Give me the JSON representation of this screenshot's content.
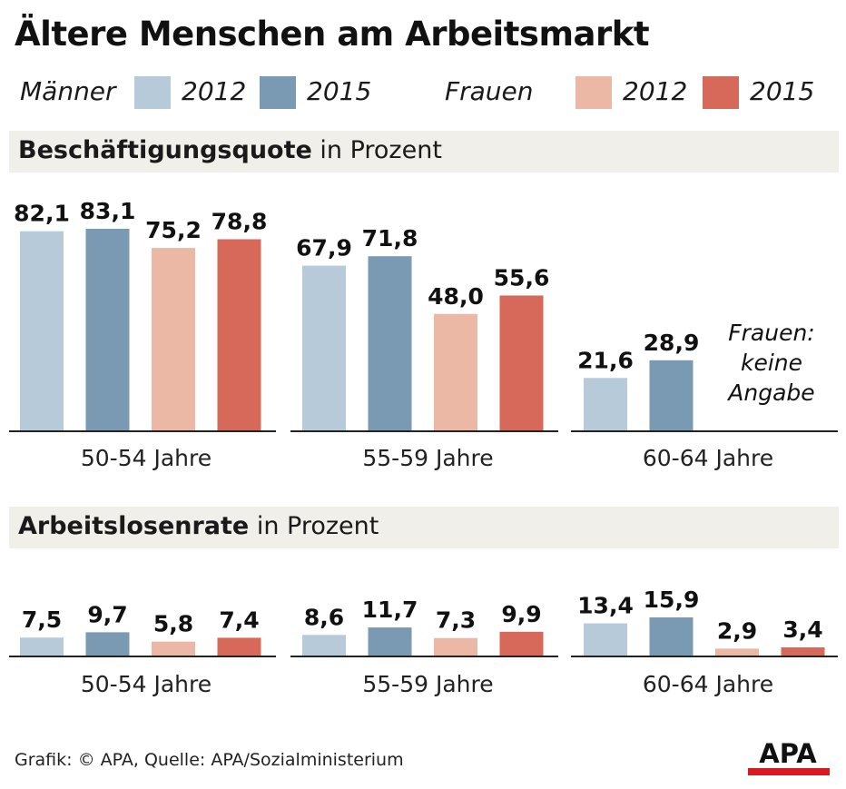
{
  "title": "Ältere Menschen am Arbeitsmarkt",
  "legend": {
    "men_label": "Männer",
    "women_label": "Frauen",
    "items": [
      {
        "year": "2012",
        "color": "#b7cad9"
      },
      {
        "year": "2015",
        "color": "#7a9ab3"
      },
      {
        "year": "2012",
        "color": "#ebb8a6"
      },
      {
        "year": "2015",
        "color": "#d6695a"
      }
    ]
  },
  "colors": {
    "men_2012": "#b7cad9",
    "men_2015": "#7a9ab3",
    "women_2012": "#ebb8a6",
    "women_2015": "#d6695a",
    "axis": "#222222",
    "section_bg": "#f0efe9"
  },
  "sections": {
    "employment": {
      "title_bold": "Beschäftigungsquote",
      "title_rest": " in Prozent"
    },
    "unemployment": {
      "title_bold": "Arbeitslosenrate",
      "title_rest": " in Prozent"
    }
  },
  "chart_data": [
    {
      "type": "bar",
      "title": "Beschäftigungsquote in Prozent",
      "categories": [
        "50-54 Jahre",
        "55-59 Jahre",
        "60-64 Jahre"
      ],
      "series": [
        {
          "name": "Männer 2012",
          "values": [
            82.1,
            67.9,
            21.6
          ],
          "labels": [
            "82,1",
            "67,9",
            "21,6"
          ]
        },
        {
          "name": "Männer 2015",
          "values": [
            83.1,
            71.8,
            28.9
          ],
          "labels": [
            "83,1",
            "71,8",
            "28,9"
          ]
        },
        {
          "name": "Frauen 2012",
          "values": [
            75.2,
            48.0,
            null
          ],
          "labels": [
            "75,2",
            "48,0",
            ""
          ]
        },
        {
          "name": "Frauen 2015",
          "values": [
            78.8,
            55.6,
            null
          ],
          "labels": [
            "78,8",
            "55,6",
            ""
          ]
        }
      ],
      "annotation": [
        "Frauen:",
        "keine",
        "Angabe"
      ],
      "ylim": [
        0,
        83.1
      ]
    },
    {
      "type": "bar",
      "title": "Arbeitslosenrate in Prozent",
      "categories": [
        "50-54 Jahre",
        "55-59 Jahre",
        "60-64 Jahre"
      ],
      "series": [
        {
          "name": "Männer 2012",
          "values": [
            7.5,
            8.6,
            13.4
          ],
          "labels": [
            "7,5",
            "8,6",
            "13,4"
          ]
        },
        {
          "name": "Männer 2015",
          "values": [
            9.7,
            11.7,
            15.9
          ],
          "labels": [
            "9,7",
            "11,7",
            "15,9"
          ]
        },
        {
          "name": "Frauen 2012",
          "values": [
            5.8,
            7.3,
            2.9
          ],
          "labels": [
            "5,8",
            "7,3",
            "2,9"
          ]
        },
        {
          "name": "Frauen 2015",
          "values": [
            7.4,
            9.9,
            3.4
          ],
          "labels": [
            "7,4",
            "9,9",
            "3,4"
          ]
        }
      ],
      "ylim": [
        0,
        15.9
      ]
    }
  ],
  "source": "Grafik: © APA, Quelle: APA/Sozialministerium",
  "logo": "APA"
}
